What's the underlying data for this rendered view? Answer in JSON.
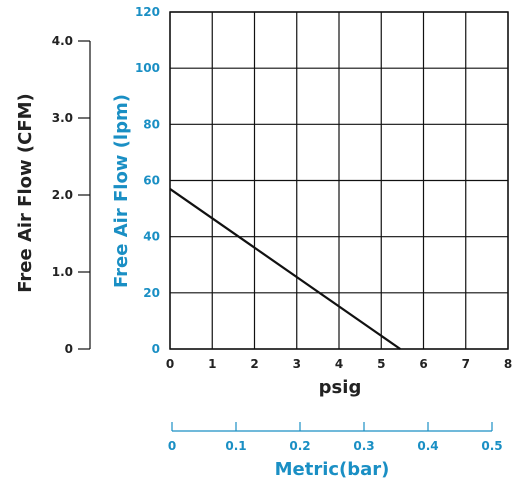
{
  "chart_data": {
    "type": "line",
    "title": "",
    "xlabel": "psig",
    "ylabel": "Free Air Flow (lpm)",
    "ylabel_secondary": "Free Air Flow (CFM)",
    "xlabel_secondary": "Metric(bar)",
    "xlim": [
      0,
      8
    ],
    "ylim": [
      0,
      120
    ],
    "x_ticks": [
      "0",
      "1",
      "2",
      "3",
      "4",
      "5",
      "6",
      "7",
      "8"
    ],
    "y_ticks": [
      "0",
      "20",
      "40",
      "60",
      "80",
      "100",
      "120"
    ],
    "cfm_ticks": [
      {
        "label": "0",
        "value": 0
      },
      {
        "label": "1.0",
        "value": 1.0
      },
      {
        "label": "2.0",
        "value": 2.0
      },
      {
        "label": "3.0",
        "value": 3.0
      },
      {
        "label": "4.0",
        "value": 4.0
      }
    ],
    "bar_ticks": [
      {
        "label": "0",
        "value": 0
      },
      {
        "label": "0.1",
        "value": 0.1
      },
      {
        "label": "0.2",
        "value": 0.2
      },
      {
        "label": "0.3",
        "value": 0.3
      },
      {
        "label": "0.4",
        "value": 0.4
      },
      {
        "label": "0.5",
        "value": 0.5
      }
    ],
    "grid": true,
    "series": [
      {
        "x": [
          0,
          5.45
        ],
        "y": [
          57,
          0
        ]
      }
    ],
    "colors": {
      "primary": "#1a8fc4",
      "text": "#222222",
      "line": "#111111"
    }
  }
}
